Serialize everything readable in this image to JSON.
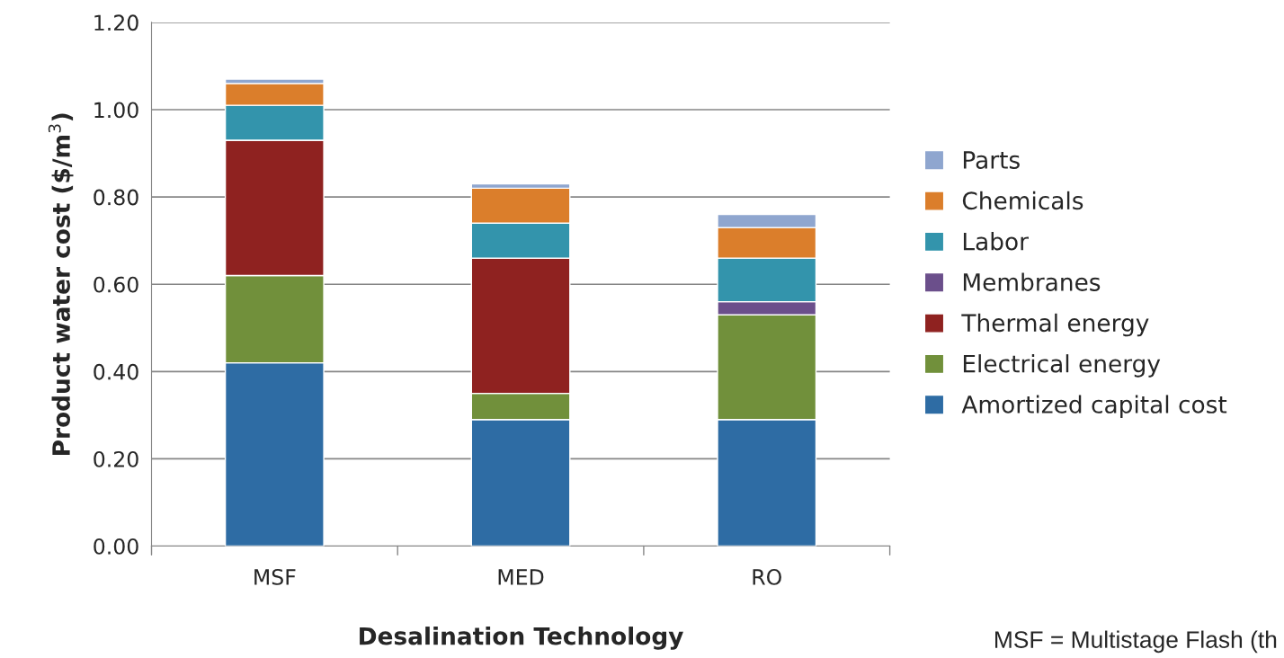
{
  "chart_data": {
    "type": "bar",
    "stacked": true,
    "xlabel": "Desalination Technology",
    "ylabel": "Product water cost ($/m$^{3}$)",
    "categories": [
      "MSF",
      "MED",
      "RO"
    ],
    "series": [
      {
        "name": "Amortized capital cost",
        "color": "#2e6ca4",
        "values": [
          0.42,
          0.29,
          0.29
        ]
      },
      {
        "name": "Electrical energy",
        "color": "#71903b",
        "values": [
          0.2,
          0.06,
          0.24
        ]
      },
      {
        "name": "Thermal energy",
        "color": "#8f2220",
        "values": [
          0.31,
          0.31,
          0
        ]
      },
      {
        "name": "Membranes",
        "color": "#6b4f8b",
        "values": [
          0,
          0,
          0.03
        ]
      },
      {
        "name": "Labor",
        "color": "#3394ac",
        "values": [
          0.08,
          0.08,
          0.1
        ]
      },
      {
        "name": "Chemicals",
        "color": "#db7e2b",
        "values": [
          0.05,
          0.08,
          0.07
        ]
      },
      {
        "name": "Parts",
        "color": "#8fa6cf",
        "values": [
          0.01,
          0.01,
          0.03
        ]
      }
    ],
    "ylim": [
      0,
      1.2
    ],
    "yticks": [
      {
        "value": 0,
        "label": "0.00"
      },
      {
        "value": 0.2,
        "label": "0.20"
      },
      {
        "value": 0.4,
        "label": "0.40"
      },
      {
        "value": 0.6,
        "label": "0.60"
      },
      {
        "value": 0.8,
        "label": "0.80"
      },
      {
        "value": 1.0,
        "label": "1.00"
      },
      {
        "value": 1.2,
        "label": "1.20"
      }
    ],
    "grid": "y",
    "legend": "right",
    "annotations": [
      "MSF = Multistage Flash (th"
    ]
  }
}
